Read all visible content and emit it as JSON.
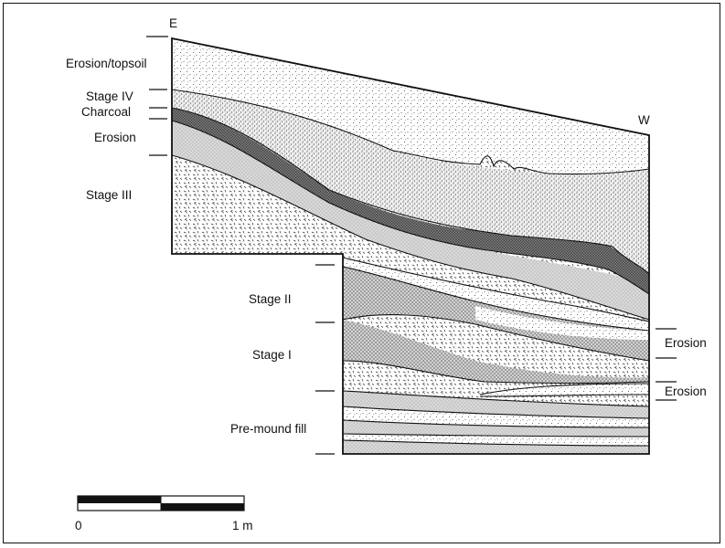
{
  "figure": {
    "orientation": {
      "east": "E",
      "west": "W"
    },
    "left_labels": {
      "erosion_topsoil": "Erosion/topsoil",
      "stage_iv": "Stage IV",
      "charcoal": "Charcoal",
      "erosion": "Erosion",
      "stage_iii": "Stage III"
    },
    "inner_labels": {
      "stage_ii": "Stage II",
      "stage_i": "Stage I",
      "pre_mound_fill": "Pre-mound fill"
    },
    "right_labels": {
      "erosion_upper": "Erosion",
      "erosion_lower": "Erosion"
    },
    "scale_bar": {
      "start": "0",
      "end": "1 m"
    }
  }
}
